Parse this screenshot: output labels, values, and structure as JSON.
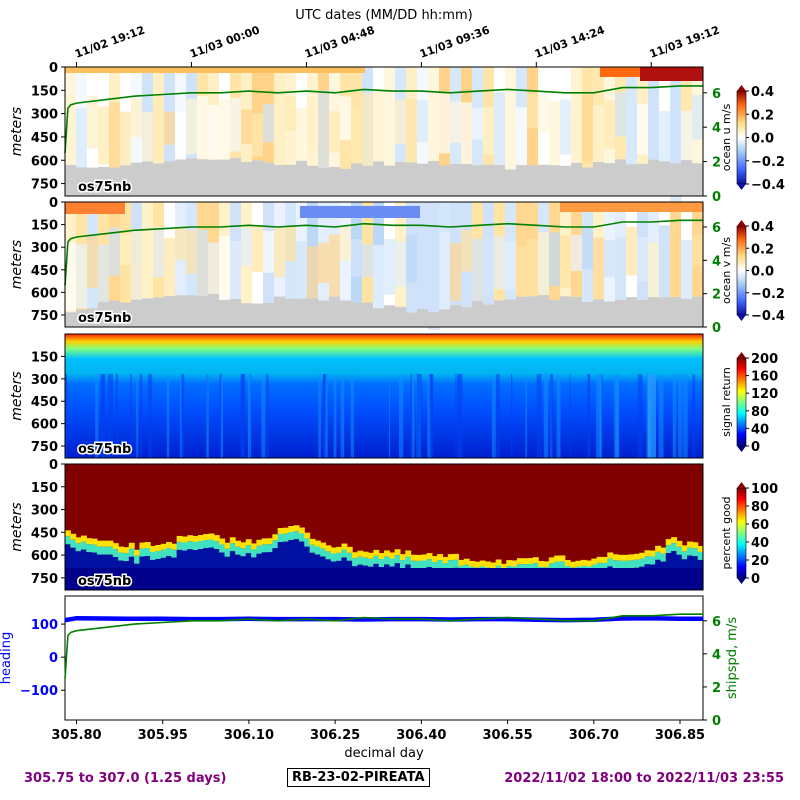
{
  "top_axis_title": "UTC dates (MM/DD hh:mm)",
  "top_ticks": [
    "11/02 19:12",
    "11/03 00:00",
    "11/03 04:48",
    "11/03 09:36",
    "11/03 14:24",
    "11/03 19:12"
  ],
  "bottom_axis_title": "decimal day",
  "footer": {
    "range_text": "305.75 to 307.0 (1.25 days)",
    "cruise_id": "RB-23-02-PIREATA",
    "date_range": "2022/11/02 18:00 to 2022/11/03 23:55"
  },
  "colors": {
    "ship_speed": "#008000",
    "heading": "#0000ff",
    "footer_text": "#800080",
    "bottom_fill": "#cccccc"
  },
  "chart_data": [
    {
      "type": "heatmap",
      "colormap": "blue-white-red",
      "ylabel": "meters",
      "yticks": [
        "0",
        "150",
        "300",
        "450",
        "600",
        "750"
      ],
      "instrument_label": "os75nb",
      "colorbar_label": "ocean u m/s",
      "colorbar_ticks": [
        "0.4",
        "0.2",
        "0.0",
        "−0.2",
        "−0.4"
      ],
      "colorbar_range": [
        -0.4,
        0.4
      ],
      "right_axis_ticks": [
        "6",
        "4",
        "2",
        "0"
      ],
      "right_axis_range": [
        0,
        7.5
      ],
      "bottom_depth_m": [
        650,
        640,
        630,
        620,
        610,
        600,
        600,
        595,
        600,
        610,
        620,
        630,
        640,
        630,
        620,
        620,
        610,
        620,
        630,
        640,
        650,
        650,
        640,
        630,
        620,
        610,
        600,
        600,
        610
      ]
    },
    {
      "type": "heatmap",
      "colormap": "blue-white-red",
      "ylabel": "meters",
      "yticks": [
        "0",
        "150",
        "300",
        "450",
        "600",
        "750"
      ],
      "instrument_label": "os75nb",
      "colorbar_label": "ocean v m/s",
      "colorbar_ticks": [
        "0.4",
        "0.2",
        "0.0",
        "−0.2",
        "−0.4"
      ],
      "colorbar_range": [
        -0.4,
        0.4
      ],
      "right_axis_ticks": [
        "6",
        "4",
        "2",
        "0"
      ],
      "right_axis_range": [
        0,
        7.5
      ],
      "bottom_depth_m": [
        720,
        690,
        660,
        640,
        620,
        610,
        620,
        640,
        660,
        650,
        640,
        630,
        650,
        680,
        700,
        720,
        720,
        700,
        680,
        660,
        640,
        630,
        640,
        650,
        650,
        640,
        630,
        630,
        640
      ]
    },
    {
      "type": "heatmap",
      "colormap": "jet",
      "ylabel": "meters",
      "yticks": [
        "150",
        "300",
        "450",
        "600",
        "750"
      ],
      "instrument_label": "os75nb",
      "colorbar_label": "signal return",
      "colorbar_ticks": [
        "200",
        "160",
        "120",
        "80",
        "40",
        "0"
      ],
      "colorbar_range": [
        0,
        200
      ]
    },
    {
      "type": "heatmap",
      "colormap": "jet",
      "ylabel": "meters",
      "yticks": [
        "0",
        "150",
        "300",
        "450",
        "600",
        "750"
      ],
      "instrument_label": "os75nb",
      "colorbar_label": "percent good",
      "colorbar_ticks": [
        "100",
        "80",
        "60",
        "40",
        "20",
        "0"
      ],
      "colorbar_range": [
        0,
        100
      ],
      "good_depth_m": [
        520,
        560,
        600,
        610,
        590,
        560,
        540,
        560,
        580,
        530,
        470,
        560,
        610,
        630,
        640,
        660,
        670,
        680,
        690,
        700,
        710,
        700,
        690,
        680,
        670,
        660,
        620,
        560,
        620
      ]
    },
    {
      "type": "line",
      "xlabel": "decimal day",
      "xticks": [
        "305.80",
        "305.95",
        "306.10",
        "306.25",
        "306.40",
        "306.55",
        "306.70",
        "306.85"
      ],
      "x_range": [
        305.78,
        306.89
      ],
      "left_axis_label": "heading",
      "left_axis_ticks": [
        "100",
        "0",
        "−100"
      ],
      "left_axis_range": [
        -190,
        185
      ],
      "right_axis_label": "shipspd, m/s",
      "right_axis_ticks": [
        "6",
        "4",
        "2",
        "0"
      ],
      "right_axis_range": [
        0,
        7.5
      ],
      "series": [
        {
          "name": "heading",
          "x": [
            305.78,
            305.8,
            305.85,
            305.9,
            305.95,
            306.0,
            306.05,
            306.1,
            306.15,
            306.2,
            306.25,
            306.3,
            306.35,
            306.4,
            306.45,
            306.5,
            306.55,
            306.6,
            306.65,
            306.7,
            306.75,
            306.8,
            306.85,
            306.89
          ],
          "y": [
            112,
            118,
            117,
            116,
            116,
            115,
            115,
            116,
            115,
            115,
            115,
            114,
            115,
            115,
            114,
            115,
            115,
            113,
            112,
            113,
            117,
            118,
            116,
            116
          ]
        },
        {
          "name": "shipspd",
          "x": [
            305.78,
            305.785,
            305.79,
            305.8,
            305.85,
            305.9,
            305.95,
            306.0,
            306.05,
            306.1,
            306.15,
            306.2,
            306.25,
            306.3,
            306.35,
            306.4,
            306.45,
            306.5,
            306.55,
            306.6,
            306.65,
            306.7,
            306.75,
            306.8,
            306.85,
            306.89
          ],
          "y": [
            2.5,
            5.1,
            5.3,
            5.4,
            5.6,
            5.8,
            5.9,
            6.0,
            6.0,
            6.1,
            6.0,
            6.1,
            6.0,
            6.2,
            6.1,
            6.1,
            6.0,
            6.1,
            6.2,
            6.1,
            6.0,
            6.0,
            6.3,
            6.3,
            6.4,
            6.4
          ]
        }
      ]
    }
  ]
}
